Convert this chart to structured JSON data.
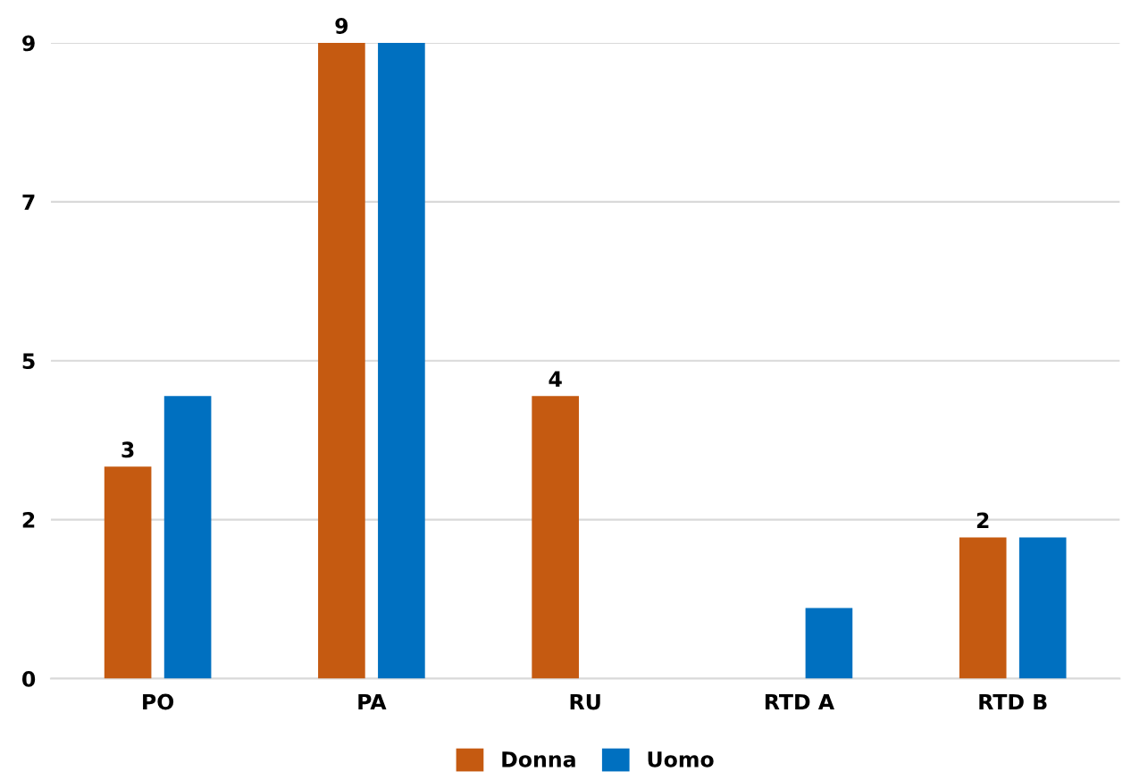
{
  "chart_data": {
    "type": "bar",
    "categories": [
      "PO",
      "PA",
      "RU",
      "RTD A",
      "RTD B"
    ],
    "series": [
      {
        "name": "Donna",
        "color": "#c55a11",
        "values": [
          3,
          9,
          4,
          null,
          2
        ],
        "value_labels": [
          "3",
          "9",
          "4",
          null,
          "2"
        ]
      },
      {
        "name": "Uomo",
        "color": "#0070c0",
        "values": [
          4,
          9,
          null,
          1,
          2
        ]
      }
    ],
    "ylim": [
      0,
      9
    ],
    "yticks": [
      0,
      {
        "value": 2.25,
        "label": "2"
      },
      {
        "value": 4.5,
        "label": "5"
      },
      {
        "value": 6.75,
        "label": "7"
      },
      9
    ],
    "grid": "y",
    "legend": "bottom"
  }
}
